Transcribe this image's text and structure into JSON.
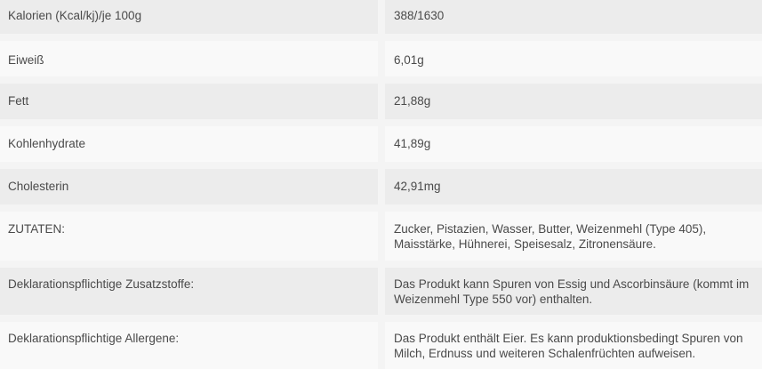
{
  "rows": [
    {
      "label": "Kalorien (Kcal/kj)/je 100g",
      "value": "388/1630"
    },
    {
      "label": "Eiweiß",
      "value": "6,01g"
    },
    {
      "label": "Fett",
      "value": "21,88g"
    },
    {
      "label": "Kohlenhydrate",
      "value": "41,89g"
    },
    {
      "label": "Cholesterin",
      "value": "42,91mg"
    },
    {
      "label": "ZUTATEN:",
      "value": "Zucker, Pistazien, Wasser, Butter, Weizenmehl (Type 405), Maisstärke, Hühnerei, Speisesalz, Zitronensäure."
    },
    {
      "label": "Deklarationspflichtige Zusatzstoffe:",
      "value": "Das Produkt kann Spuren von Essig und Ascorbinsäure (kommt im Weizenmehl Type 550 vor) enthalten."
    },
    {
      "label": "Deklarationspflichtige Allergene:",
      "value": "Das Produkt enthält Eier. Es kann produktionsbedingt Spuren von Milch, Erdnuss und weiteren Schalenfrüchten aufweisen."
    }
  ]
}
